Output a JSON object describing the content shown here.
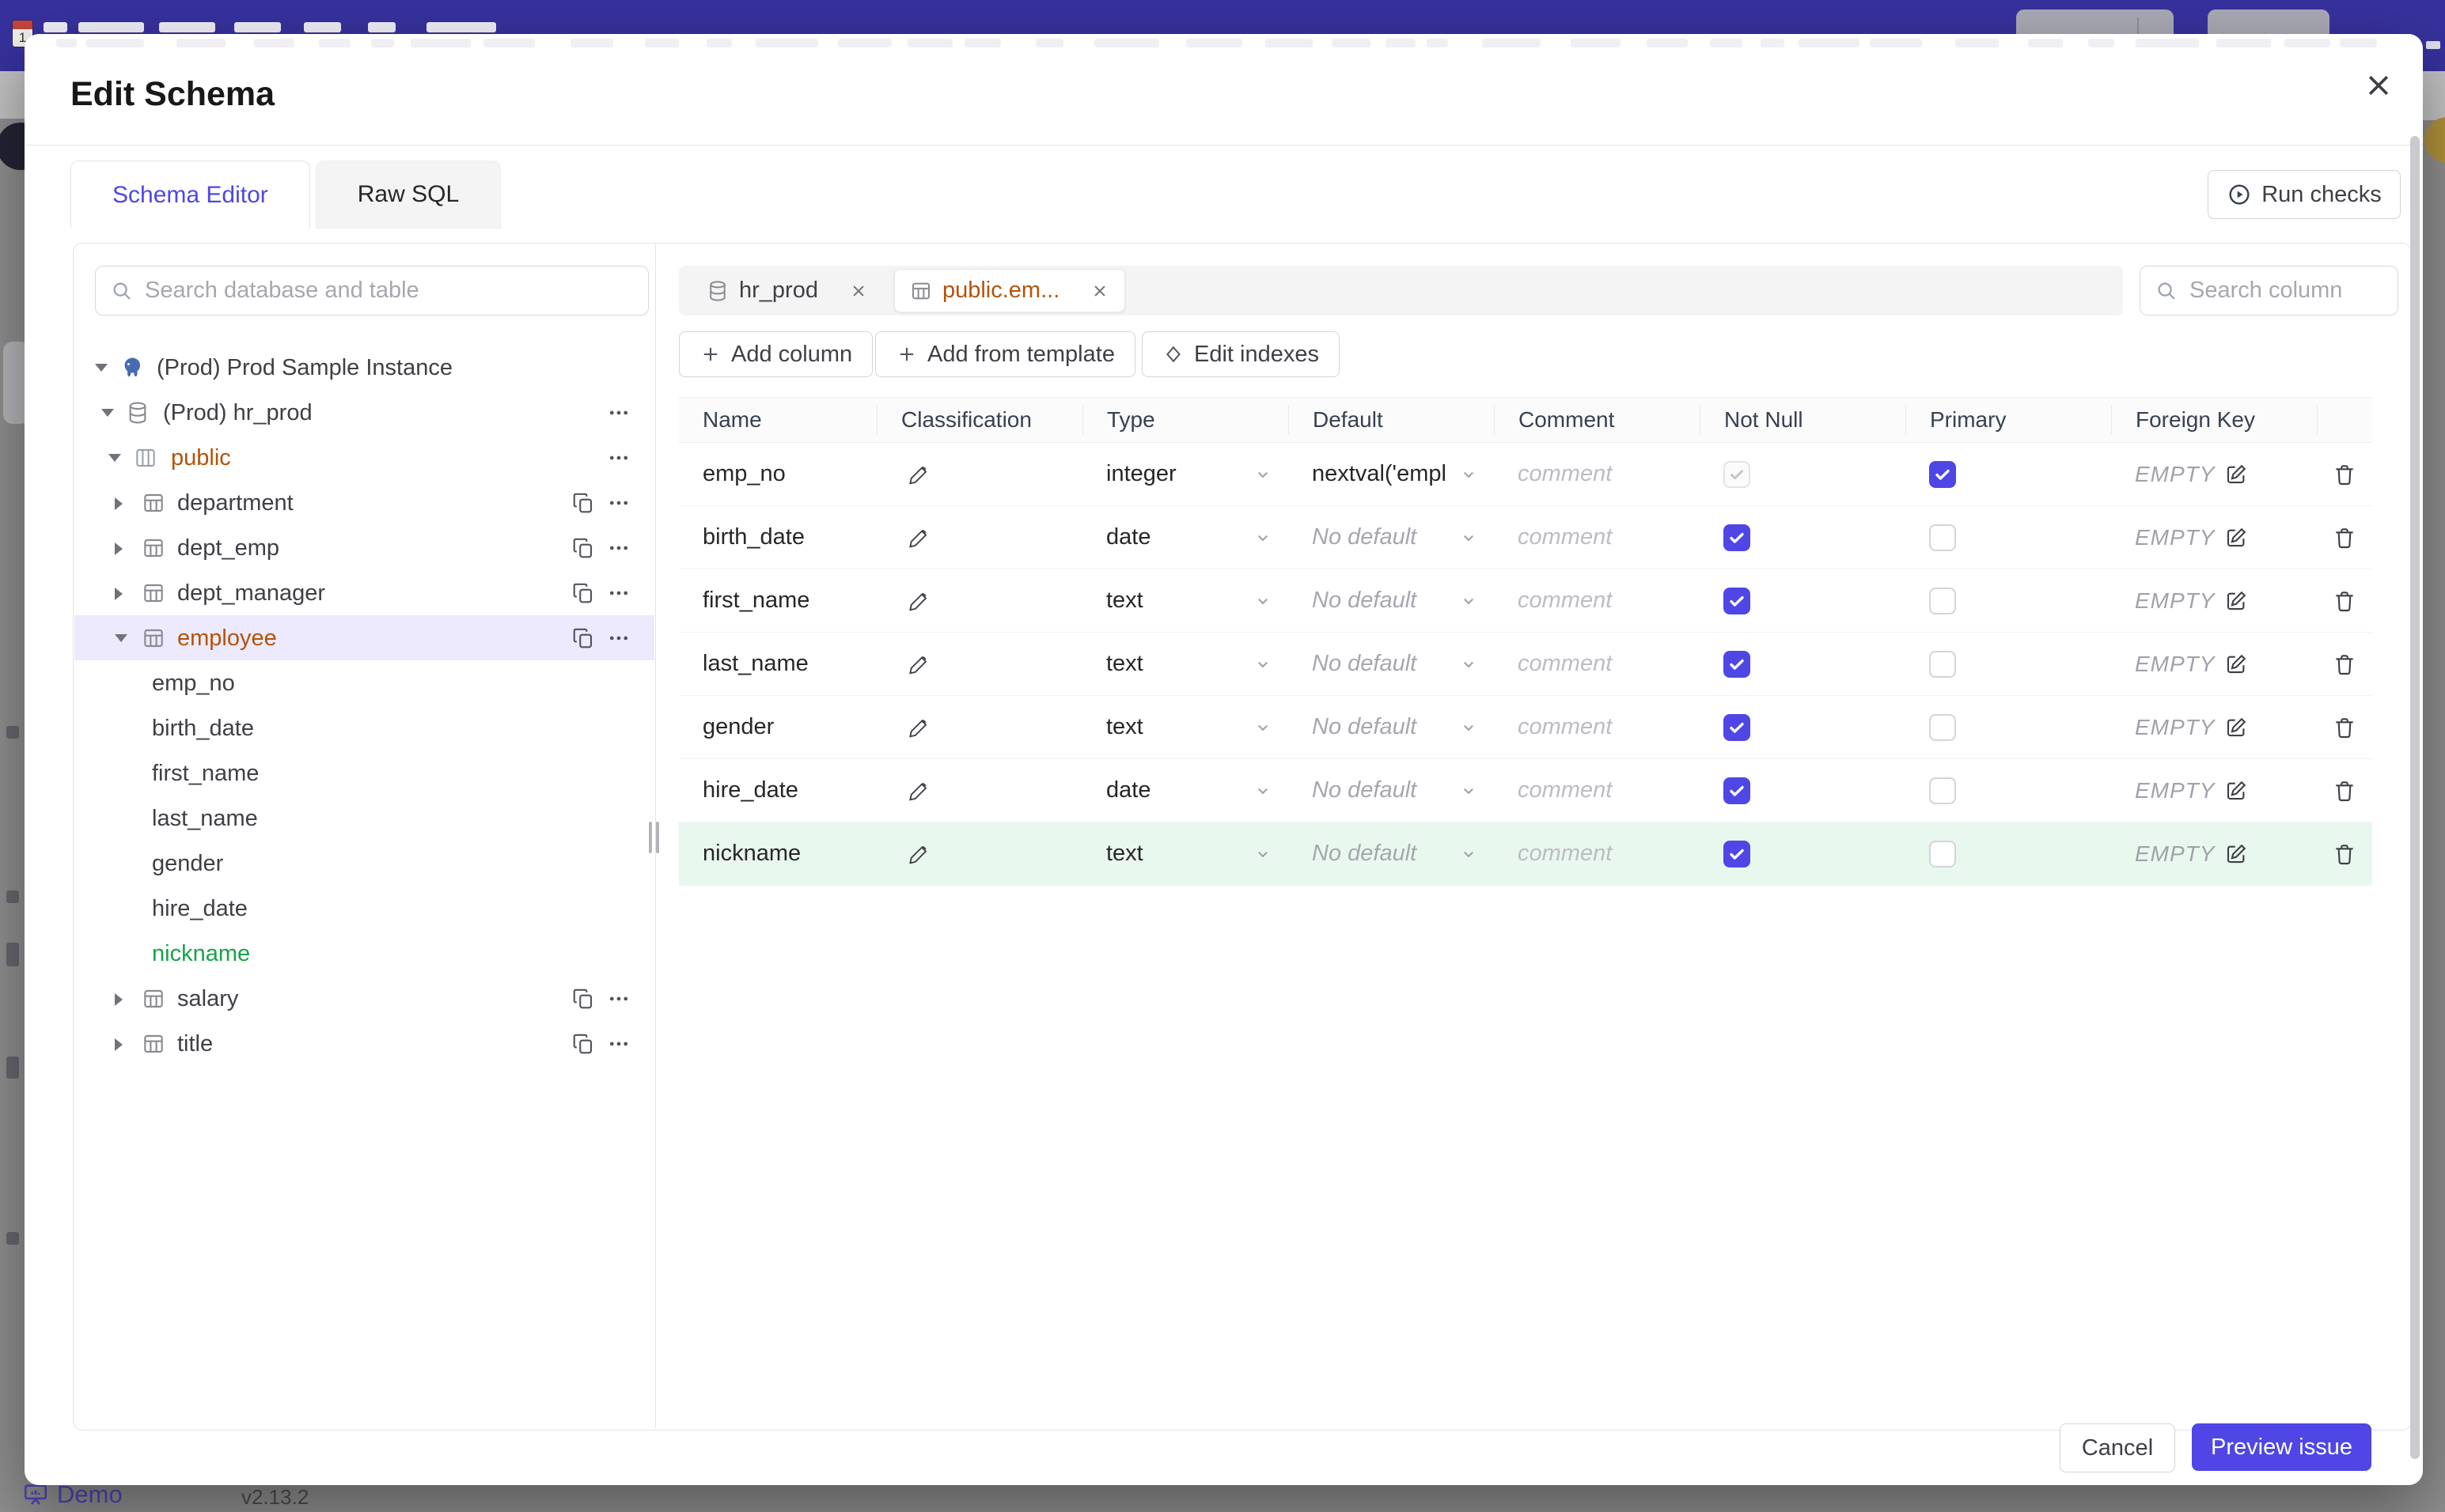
{
  "background": {
    "footer": {
      "brand": "Demo",
      "version": "v2.13.2"
    }
  },
  "modal": {
    "title": "Edit Schema",
    "run_checks_label": "Run checks",
    "tabs": [
      {
        "label": "Schema Editor",
        "active": true
      },
      {
        "label": "Raw SQL",
        "active": false
      }
    ],
    "sidebar": {
      "search_placeholder": "Search database and table",
      "tree": [
        {
          "label": "(Prod) Prod Sample Instance",
          "level": 0,
          "icon": "postgresql",
          "arrow": "down"
        },
        {
          "label": "(Prod) hr_prod",
          "level": 1,
          "icon": "database",
          "arrow": "down",
          "menu": true
        },
        {
          "label": "public",
          "level": 2,
          "icon": "schema",
          "arrow": "down",
          "menu": true,
          "color": "amber"
        },
        {
          "label": "department",
          "level": 3,
          "icon": "table",
          "arrow": "right",
          "copy": true,
          "menu": true
        },
        {
          "label": "dept_emp",
          "level": 3,
          "icon": "table",
          "arrow": "right",
          "copy": true,
          "menu": true
        },
        {
          "label": "dept_manager",
          "level": 3,
          "icon": "table",
          "arrow": "right",
          "copy": true,
          "menu": true
        },
        {
          "label": "employee",
          "level": 3,
          "icon": "table",
          "arrow": "down",
          "copy": true,
          "menu": true,
          "color": "amber",
          "selected": true
        },
        {
          "label": "emp_no",
          "level": 4
        },
        {
          "label": "birth_date",
          "level": 4
        },
        {
          "label": "first_name",
          "level": 4
        },
        {
          "label": "last_name",
          "level": 4
        },
        {
          "label": "gender",
          "level": 4
        },
        {
          "label": "hire_date",
          "level": 4
        },
        {
          "label": "nickname",
          "level": 4,
          "color": "green"
        },
        {
          "label": "salary",
          "level": 3,
          "icon": "table",
          "arrow": "right",
          "copy": true,
          "menu": true
        },
        {
          "label": "title",
          "level": 3,
          "icon": "table",
          "arrow": "right",
          "copy": true,
          "menu": true
        }
      ]
    },
    "editor": {
      "chips": [
        {
          "label": "hr_prod",
          "icon": "database",
          "active": false
        },
        {
          "label": "public.em...",
          "icon": "table",
          "active": true
        }
      ],
      "search_placeholder": "Search column",
      "actions": [
        {
          "label": "Add column",
          "icon": "plus"
        },
        {
          "label": "Add from template",
          "icon": "plus"
        },
        {
          "label": "Edit indexes",
          "icon": "diamond"
        }
      ],
      "table": {
        "headers": [
          "Name",
          "Classification",
          "Type",
          "Default",
          "Comment",
          "Not Null",
          "Primary",
          "Foreign Key"
        ],
        "no_default_label": "No default",
        "comment_placeholder": "comment",
        "fk_empty_label": "EMPTY",
        "rows": [
          {
            "name": "emp_no",
            "type": "integer",
            "default": "nextval('employ",
            "has_default": true,
            "not_null": true,
            "not_null_disabled": true,
            "primary": true,
            "new": false
          },
          {
            "name": "birth_date",
            "type": "date",
            "default": "",
            "has_default": false,
            "not_null": true,
            "not_null_disabled": false,
            "primary": false,
            "new": false
          },
          {
            "name": "first_name",
            "type": "text",
            "default": "",
            "has_default": false,
            "not_null": true,
            "not_null_disabled": false,
            "primary": false,
            "new": false
          },
          {
            "name": "last_name",
            "type": "text",
            "default": "",
            "has_default": false,
            "not_null": true,
            "not_null_disabled": false,
            "primary": false,
            "new": false
          },
          {
            "name": "gender",
            "type": "text",
            "default": "",
            "has_default": false,
            "not_null": true,
            "not_null_disabled": false,
            "primary": false,
            "new": false
          },
          {
            "name": "hire_date",
            "type": "date",
            "default": "",
            "has_default": false,
            "not_null": true,
            "not_null_disabled": false,
            "primary": false,
            "new": false
          },
          {
            "name": "nickname",
            "type": "text",
            "default": "",
            "has_default": false,
            "not_null": true,
            "not_null_disabled": false,
            "primary": false,
            "new": true
          }
        ]
      }
    },
    "footer": {
      "cancel": "Cancel",
      "primary": "Preview issue"
    }
  },
  "colors": {
    "accent": "#4f46e5",
    "schema_name": "#b45309",
    "new_item_green": "#16a34a",
    "new_row_bg": "#e9f8ef",
    "selected_row_bg": "#eceafc",
    "header_bar": "#37319d"
  }
}
